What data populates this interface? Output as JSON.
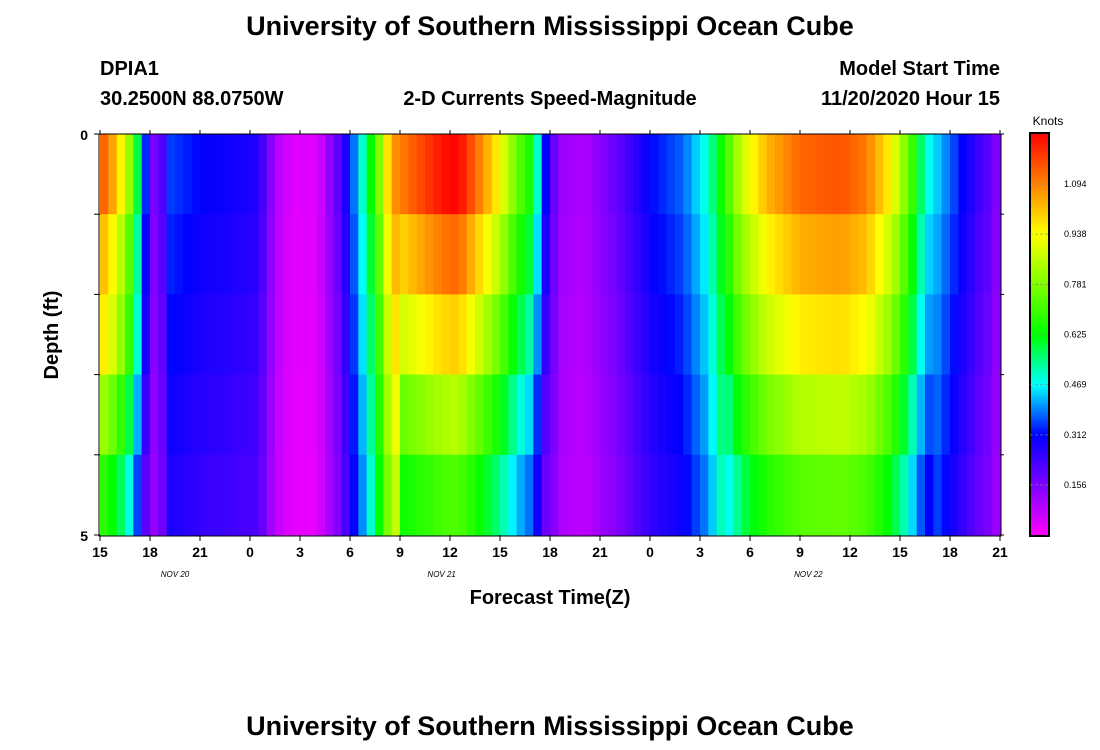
{
  "page": {
    "title_top": "University of Southern Mississippi Ocean Cube",
    "title_bottom": "University of Southern Mississippi Ocean Cube",
    "station_id": "DPIA1",
    "coordinates": "30.2500N 88.0750W",
    "plot_title": "2-D Currents Speed-Magnitude",
    "model_start_label": "Model Start Time",
    "model_start_value": "11/20/2020 Hour 15"
  },
  "chart_data": {
    "type": "heatmap",
    "title": "2-D Currents Speed-Magnitude",
    "xlabel": "Forecast Time(Z)",
    "ylabel": "Depth (ft)",
    "x_tick_labels": [
      "15",
      "18",
      "21",
      "0",
      "3",
      "6",
      "9",
      "12",
      "15",
      "18",
      "21",
      "0",
      "3",
      "6",
      "9",
      "12",
      "15",
      "18",
      "21"
    ],
    "date_labels": [
      {
        "text": "NOV  20",
        "at_hour": 4.5
      },
      {
        "text": "NOV  21",
        "at_hour": 20.5
      },
      {
        "text": "NOV  22",
        "at_hour": 42.5
      }
    ],
    "y_tick_labels": [
      "0",
      "5"
    ],
    "ylim": [
      0,
      5
    ],
    "x_range_hours": [
      0,
      54
    ],
    "colorbar": {
      "unit": "Knots",
      "tick_labels": [
        "0.156",
        "0.312",
        "0.469",
        "0.625",
        "0.781",
        "0.938",
        "1.094"
      ],
      "tick_values": [
        0.156,
        0.312,
        0.469,
        0.625,
        0.781,
        0.938,
        1.094
      ],
      "range": [
        0.0,
        1.25
      ]
    },
    "depth_rows": 5,
    "hour_step": 0.5,
    "profiles": [
      {
        "shape": [
          0.5,
          0.5,
          0.5,
          0.5,
          0.5
        ],
        "keys": [
          [
            0,
            0.92
          ],
          [
            0.5,
            0.88
          ],
          [
            1,
            0.8
          ],
          [
            1.6,
            0.7
          ],
          [
            2.3,
            0.45
          ],
          [
            2.8,
            0.25
          ],
          [
            3.3,
            0.12
          ],
          [
            3.8,
            0.18
          ],
          [
            4.2,
            0.28
          ],
          [
            6,
            0.25
          ],
          [
            9.5,
            0.22
          ],
          [
            10.5,
            0.08
          ],
          [
            11.5,
            0.03
          ],
          [
            13,
            0.03
          ],
          [
            14.5,
            0.18
          ],
          [
            15.5,
            0.35
          ],
          [
            16.5,
            0.55
          ],
          [
            17.5,
            0.85
          ]
        ]
      },
      {
        "shape": [
          0.55,
          0.65,
          0.78,
          0.9,
          1.0
        ],
        "keys": [
          [
            17.5,
            0.85
          ],
          [
            19,
            0.92
          ],
          [
            20.5,
            0.98
          ],
          [
            21.5,
            1.0
          ],
          [
            22.5,
            0.9
          ],
          [
            24,
            0.75
          ],
          [
            25,
            0.6
          ],
          [
            26,
            0.5
          ],
          [
            26.5,
            0.3
          ],
          [
            27.5,
            0.1
          ],
          [
            29,
            0.08
          ],
          [
            31,
            0.15
          ],
          [
            33,
            0.25
          ],
          [
            35,
            0.3
          ],
          [
            36.5,
            0.4
          ],
          [
            37.5,
            0.55
          ],
          [
            38.5,
            0.7
          ],
          [
            40,
            0.82
          ],
          [
            42,
            0.9
          ],
          [
            44.5,
            0.92
          ],
          [
            46,
            0.88
          ],
          [
            47.5,
            0.75
          ],
          [
            48.5,
            0.6
          ],
          [
            49.5,
            0.4
          ],
          [
            51,
            0.3
          ],
          [
            52.5,
            0.2
          ],
          [
            53.5,
            0.15
          ],
          [
            54,
            0.1
          ]
        ]
      }
    ]
  }
}
